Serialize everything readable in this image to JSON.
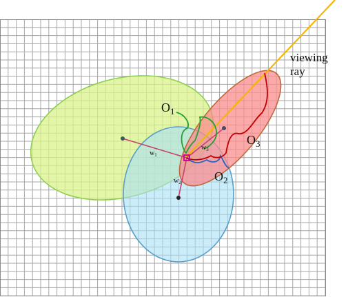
{
  "labels": {
    "o1": "O",
    "o1_sub": "1",
    "o2": "O",
    "o2_sub": "2",
    "o3": "O",
    "o3_sub": "3",
    "w1": "w",
    "w1_sub": "1",
    "w2": "w",
    "w2_sub": "2",
    "w3": "w",
    "w3_sub": "3",
    "viewing_ray_line1": "viewing",
    "viewing_ray_line2": "ray"
  },
  "colors": {
    "grid_line": "#a6a6a6",
    "ellipse_green_fill": "#d9f28a",
    "ellipse_green_stroke": "#8fcf52",
    "ellipse_blue_fill": "#a9dff5",
    "ellipse_blue_stroke": "#5a9fc8",
    "ellipse_red_fill": "#f98c8c",
    "ellipse_red_stroke": "#c0683a",
    "weight_line": "#c8406e",
    "viewing_ray": "#f7b500",
    "contour_green": "#22a032",
    "contour_blue": "#2a5fc4",
    "contour_red": "#c00000",
    "query_point": "#c8008c"
  }
}
